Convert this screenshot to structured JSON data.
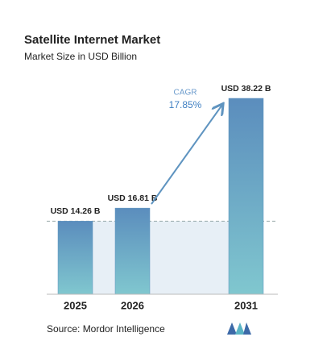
{
  "chart_data": {
    "type": "bar",
    "title": "Satellite Internet Market",
    "subtitle": "Market Size in USD Billion",
    "categories": [
      "2025",
      "2026",
      "2031"
    ],
    "values": [
      14.26,
      16.81,
      38.22
    ],
    "value_labels": [
      "USD 14.26 B",
      "USD 16.81 B",
      "USD 38.22 B"
    ],
    "color": "#5f94c0",
    "annotation": {
      "label": "CAGR",
      "value": "17.85%"
    },
    "source": "Source: Mordor Intelligence"
  }
}
